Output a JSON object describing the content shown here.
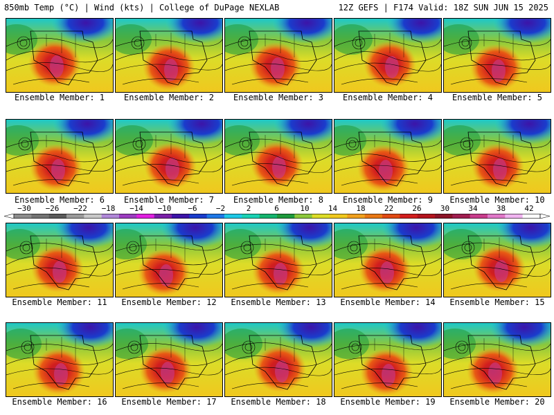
{
  "header": {
    "left_title": "850mb Temp (°C) | Wind (kts) | College of DuPage NEXLAB",
    "right_title": "12Z GEFS | F174 Valid: 18Z SUN JUN 15 2025"
  },
  "colorbar": {
    "ticks": [
      "−30",
      "−26",
      "−22",
      "−18",
      "−14",
      "−10",
      "−6",
      "−2",
      "2",
      "6",
      "10",
      "14",
      "18",
      "22",
      "26",
      "30",
      "34",
      "38",
      "42"
    ],
    "colors": [
      "#8c8c8c",
      "#737373",
      "#5a5a5a",
      "#9a9a9a",
      "#c8c8c8",
      "#b088d8",
      "#9c3cc0",
      "#e020e0",
      "#7a1fa8",
      "#3c14a8",
      "#1a3ccc",
      "#1e78e6",
      "#1ec8e6",
      "#1ad2b4",
      "#14b46e",
      "#1e9a3c",
      "#8cc83c",
      "#dcdc28",
      "#f0c81e",
      "#f0a01e",
      "#e87814",
      "#e04a14",
      "#d21e1e",
      "#b4141e",
      "#8c1428",
      "#a01e50",
      "#c83c8c",
      "#e078c8",
      "#f0b4f0",
      "#ffffff"
    ]
  },
  "panels": [
    {
      "label": "Ensemble Member: 1"
    },
    {
      "label": "Ensemble Member: 2"
    },
    {
      "label": "Ensemble Member: 3"
    },
    {
      "label": "Ensemble Member: 4"
    },
    {
      "label": "Ensemble Member: 5"
    },
    {
      "label": "Ensemble Member: 6"
    },
    {
      "label": "Ensemble Member: 7"
    },
    {
      "label": "Ensemble Member: 8"
    },
    {
      "label": "Ensemble Member: 9"
    },
    {
      "label": "Ensemble Member: 10"
    },
    {
      "label": "Ensemble Member: 11"
    },
    {
      "label": "Ensemble Member: 12"
    },
    {
      "label": "Ensemble Member: 13"
    },
    {
      "label": "Ensemble Member: 14"
    },
    {
      "label": "Ensemble Member: 15"
    },
    {
      "label": "Ensemble Member: 16"
    },
    {
      "label": "Ensemble Member: 17"
    },
    {
      "label": "Ensemble Member: 18"
    },
    {
      "label": "Ensemble Member: 19"
    },
    {
      "label": "Ensemble Member: 20"
    }
  ]
}
